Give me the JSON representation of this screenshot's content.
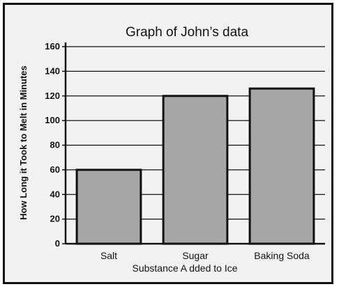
{
  "chart_data": {
    "type": "bar",
    "title": "Graph of John’s data",
    "xlabel": "Substance A dded to Ice",
    "ylabel": "How Long it Took to Melt in Minutes",
    "categories": [
      "Salt",
      "Sugar",
      "Baking Soda"
    ],
    "values": [
      60,
      120,
      126
    ],
    "ylim": [
      0,
      160
    ],
    "yticks": [
      "0",
      "20",
      "40",
      "60",
      "80",
      "100",
      "120",
      "140",
      "160"
    ],
    "grid": true,
    "bar_color": "#a6a6a6",
    "background_color": "#f2f2f2"
  }
}
